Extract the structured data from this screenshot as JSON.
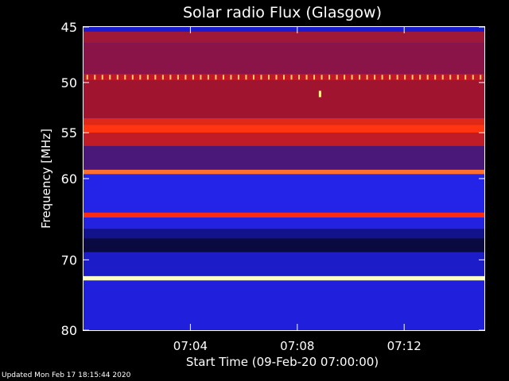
{
  "footer": {
    "updated": "Updated Mon Feb 17 18:15:44 2020"
  },
  "chart_data": {
    "type": "heatmap",
    "title": "Solar radio Flux (Glasgow)",
    "xlabel": "Start Time (09-Feb-20 07:00:00)",
    "ylabel": "Frequency [MHz]",
    "x_unit": "minutes after 07:00:00",
    "xlim": [
      0,
      15
    ],
    "ylim": [
      45,
      80
    ],
    "y_axis_reversed": true,
    "y_scale": "log",
    "xticks": [
      {
        "value": 4,
        "label": "07:04"
      },
      {
        "value": 8,
        "label": "07:08"
      },
      {
        "value": 12,
        "label": "07:12"
      }
    ],
    "yticks": [
      {
        "value": 45,
        "label": "45"
      },
      {
        "value": 50,
        "label": "50"
      },
      {
        "value": 55,
        "label": "55"
      },
      {
        "value": 60,
        "label": "60"
      },
      {
        "value": 70,
        "label": "70"
      },
      {
        "value": 80,
        "label": "80"
      }
    ],
    "colormap": [
      "#000010",
      "#1a1acc",
      "#2b2bff",
      "#b01030",
      "#ff2a10",
      "#ff9040",
      "#ffffd0"
    ],
    "frequency_bands": [
      {
        "freq_from": 45.0,
        "freq_to": 45.4,
        "color": "#1a1acc"
      },
      {
        "freq_from": 45.4,
        "freq_to": 46.4,
        "color": "#a01838"
      },
      {
        "freq_from": 46.4,
        "freq_to": 49.2,
        "color": "#8a1448"
      },
      {
        "freq_from": 49.2,
        "freq_to": 49.8,
        "color": "#c01828"
      },
      {
        "freq_from": 49.8,
        "freq_to": 53.5,
        "color": "#a01430"
      },
      {
        "freq_from": 53.5,
        "freq_to": 54.2,
        "color": "#e02818"
      },
      {
        "freq_from": 54.2,
        "freq_to": 55.0,
        "color": "#ff3410"
      },
      {
        "freq_from": 55.0,
        "freq_to": 56.4,
        "color": "#c01c28"
      },
      {
        "freq_from": 56.4,
        "freq_to": 59.0,
        "color": "#4a1878"
      },
      {
        "freq_from": 59.0,
        "freq_to": 59.5,
        "color": "#ff7030"
      },
      {
        "freq_from": 59.5,
        "freq_to": 64.0,
        "color": "#2424e8"
      },
      {
        "freq_from": 64.0,
        "freq_to": 64.6,
        "color": "#ff2a12"
      },
      {
        "freq_from": 64.6,
        "freq_to": 66.0,
        "color": "#2222e0"
      },
      {
        "freq_from": 66.0,
        "freq_to": 67.2,
        "color": "#12128a"
      },
      {
        "freq_from": 67.2,
        "freq_to": 69.0,
        "color": "#0a0a40"
      },
      {
        "freq_from": 69.0,
        "freq_to": 72.2,
        "color": "#1c1cc8"
      },
      {
        "freq_from": 72.2,
        "freq_to": 72.8,
        "color": "#ffffc8"
      },
      {
        "freq_from": 72.8,
        "freq_to": 80.0,
        "color": "#2020dc"
      }
    ],
    "annotations": [
      {
        "type": "periodic_bursts",
        "frequency": 49.5,
        "time_from": 0,
        "time_to": 15,
        "count": 53,
        "color": "#ffd060"
      },
      {
        "type": "burst",
        "frequency": 51.1,
        "time": 8.85,
        "color": "#ffff80"
      }
    ]
  }
}
